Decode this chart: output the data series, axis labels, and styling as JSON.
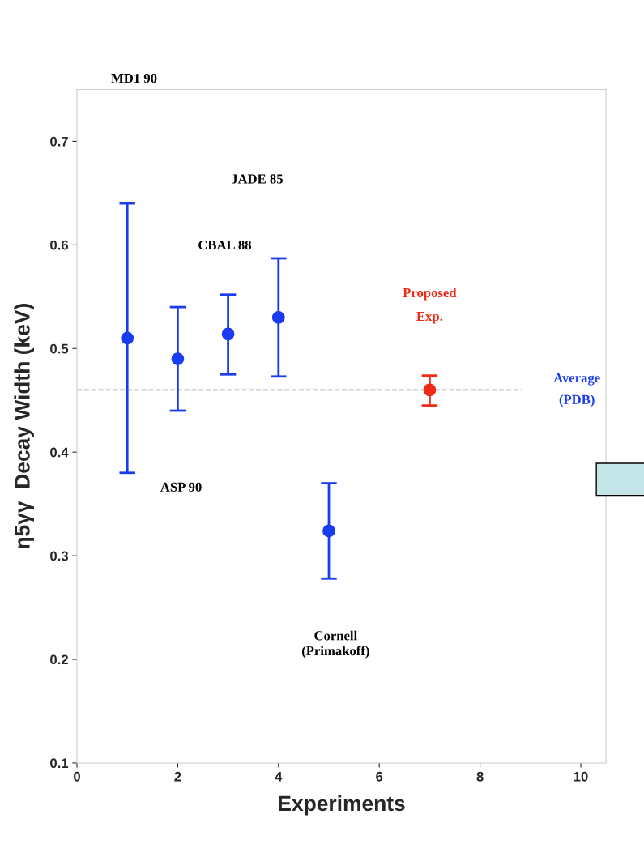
{
  "chart_data": {
    "type": "scatter",
    "xlabel": "Experiments",
    "ylabel": "η5γγ  Decay Width (keV)",
    "xlim": [
      0,
      10.5
    ],
    "xticks": [
      0,
      2,
      4,
      6,
      8,
      10
    ],
    "ylim": [
      0.1,
      0.75
    ],
    "yticks": [
      0.1,
      0.2,
      0.3,
      0.4,
      0.5,
      0.6,
      0.7
    ],
    "grid": false,
    "legend": false,
    "marker": "circle",
    "series": [
      {
        "color": "#1a3cf0",
        "x": [
          1,
          2,
          3,
          4,
          5
        ],
        "values": [
          0.51,
          0.49,
          0.514,
          0.53,
          0.324
        ],
        "errors": [
          [
            0.38,
            0.64
          ],
          [
            0.44,
            0.54
          ],
          [
            0.475,
            0.552
          ],
          [
            0.473,
            0.587
          ],
          [
            0.278,
            0.37
          ]
        ]
      },
      {
        "name": "Proposed\nExp.",
        "color": "#f02a1a",
        "x": [
          7
        ],
        "values": [
          0.46
        ],
        "errors": [
          [
            0.445,
            0.474
          ]
        ]
      }
    ],
    "ref_lines": [
      {
        "axis": "y",
        "value": 0.46,
        "label": "Average\n(PDB)",
        "color": "#aaaaaa",
        "line_style": "dashed"
      }
    ],
    "annotations": [
      "MD1 90",
      "ASP 90",
      "CBAL 88",
      "JADE 85",
      "Cornell\n(Primakoff)"
    ]
  }
}
